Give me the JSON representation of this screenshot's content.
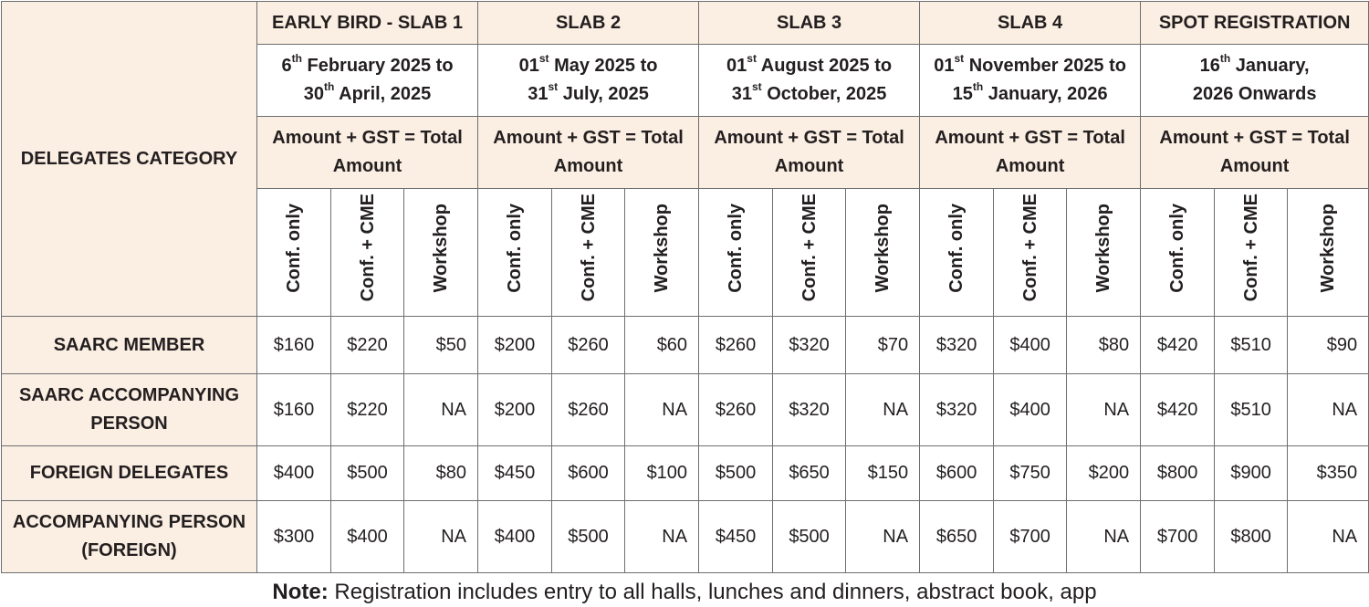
{
  "header": {
    "category_label": "DELEGATES CATEGORY",
    "slabs": [
      {
        "title": "EARLY BIRD - SLAB 1",
        "date_line1": [
          "6",
          "th",
          " February 2025 to"
        ],
        "date_line2": [
          "30",
          "th",
          " April, 2025"
        ]
      },
      {
        "title": "SLAB 2",
        "date_line1": [
          "01",
          "st",
          " May 2025 to"
        ],
        "date_line2": [
          "31",
          "st",
          " July, 2025"
        ]
      },
      {
        "title": "SLAB 3",
        "date_line1": [
          "01",
          "st",
          " August 2025 to"
        ],
        "date_line2": [
          "31",
          "st",
          " October, 2025"
        ]
      },
      {
        "title": "SLAB 4",
        "date_line1": [
          "01",
          "st",
          " November 2025 to"
        ],
        "date_line2": [
          "15",
          "th",
          " January, 2026"
        ]
      },
      {
        "title": "SPOT REGISTRATION",
        "date_line1": [
          "16",
          "th",
          " January,"
        ],
        "date_line2": [
          "",
          "",
          "2026 Onwards"
        ]
      }
    ],
    "amount_line1": "Amount + GST = Total",
    "amount_line2": "Amount",
    "sub_columns": [
      "Conf. only",
      "Conf. + CME",
      "Workshop"
    ]
  },
  "rows": [
    {
      "category": [
        "SAARC MEMBER"
      ],
      "values": [
        "$160",
        "$220",
        "$50",
        "$200",
        "$260",
        "$60",
        "$260",
        "$320",
        "$70",
        "$320",
        "$400",
        "$80",
        "$420",
        "$510",
        "$90"
      ]
    },
    {
      "category": [
        "SAARC ACCOMPANYING",
        "PERSON"
      ],
      "values": [
        "$160",
        "$220",
        "NA",
        "$200",
        "$260",
        "NA",
        "$260",
        "$320",
        "NA",
        "$320",
        "$400",
        "NA",
        "$420",
        "$510",
        "NA"
      ]
    },
    {
      "category": [
        "FOREIGN DELEGATES"
      ],
      "values": [
        "$400",
        "$500",
        "$80",
        "$450",
        "$600",
        "$100",
        "$500",
        "$650",
        "$150",
        "$600",
        "$750",
        "$200",
        "$800",
        "$900",
        "$350"
      ]
    },
    {
      "category": [
        "ACCOMPANYING PERSON",
        "(FOREIGN)"
      ],
      "values": [
        "$300",
        "$400",
        "NA",
        "$400",
        "$500",
        "NA",
        "$450",
        "$500",
        "NA",
        "$650",
        "$700",
        "NA",
        "$700",
        "$800",
        "NA"
      ]
    }
  ],
  "note": {
    "label": "Note:",
    "text": " Registration includes entry to all halls, lunches and dinners, abstract book, app"
  },
  "colors": {
    "header_fill": "#fbeee2",
    "border": "#6d6e71",
    "text": "#231f20"
  }
}
